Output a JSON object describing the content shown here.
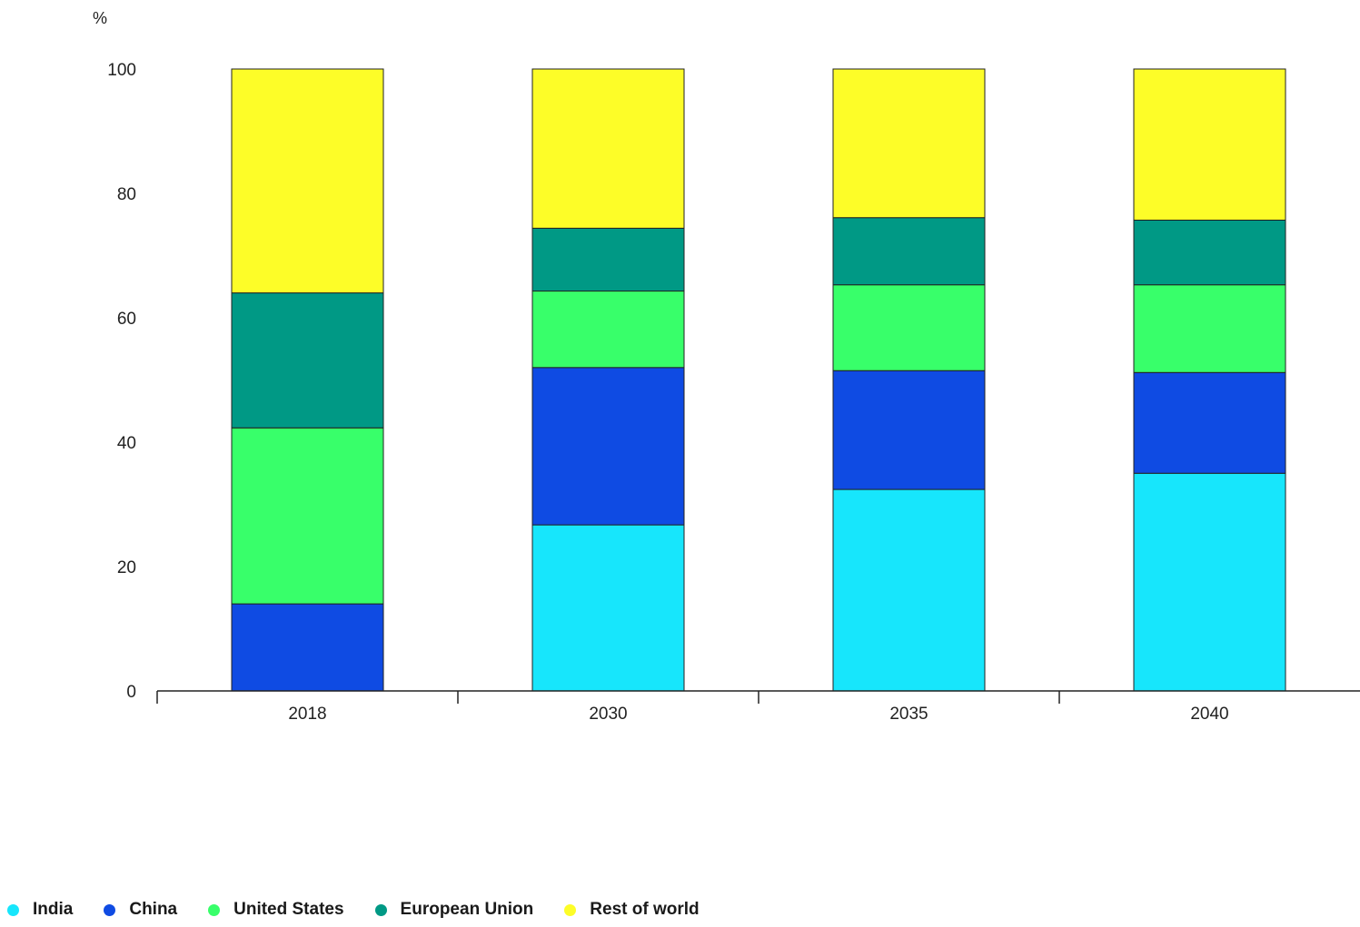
{
  "chart_data": {
    "type": "bar",
    "stacked": true,
    "title": "",
    "xlabel": "",
    "ylabel": "%",
    "ylim": [
      0,
      100
    ],
    "yticks": [
      0,
      20,
      40,
      60,
      80,
      100
    ],
    "categories": [
      "2018",
      "2030",
      "2035",
      "2040"
    ],
    "series": [
      {
        "name": "India",
        "color": "#17e6fc",
        "values": [
          0,
          26.7,
          32.4,
          35.0
        ]
      },
      {
        "name": "China",
        "color": "#0f4be3",
        "values": [
          14.0,
          25.3,
          19.1,
          16.2
        ]
      },
      {
        "name": "United States",
        "color": "#38ff6a",
        "values": [
          28.3,
          12.3,
          13.8,
          14.1
        ]
      },
      {
        "name": "European Union",
        "color": "#009985",
        "values": [
          21.7,
          10.1,
          10.8,
          10.4
        ]
      },
      {
        "name": "Rest of world",
        "color": "#fdfd28",
        "values": [
          36.0,
          25.6,
          23.9,
          24.3
        ]
      }
    ],
    "grid": false,
    "legend_position": "bottom-left"
  }
}
